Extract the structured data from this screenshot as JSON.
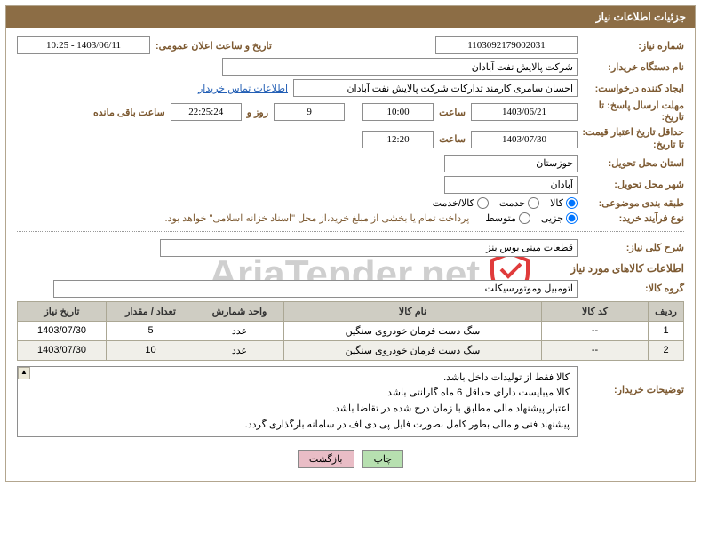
{
  "colors": {
    "header_bg": "#8c6d45",
    "header_text": "#ffffff",
    "label_color": "#7d5a32",
    "border_color": "#b3a68f",
    "table_header_bg": "#cfcdc3",
    "table_border": "#aba794",
    "link_color": "#235fb5",
    "btn_green": "#b7e0b0",
    "btn_pink": "#e9bdc6",
    "watermark_color": "#cfcfcf",
    "watermark_accent": "#e03b3b"
  },
  "title": "جزئیات اطلاعات نیاز",
  "labels": {
    "need_number": "شماره نیاز:",
    "announcement_datetime": "تاریخ و ساعت اعلان عمومی:",
    "buyer_org": "نام دستگاه خریدار:",
    "requester": "ایجاد کننده درخواست:",
    "contact_link": "اطلاعات تماس خریدار",
    "deadline_send": "مهلت ارسال پاسخ:  تا تاریخ:",
    "hour": "ساعت",
    "days_and": "روز و",
    "remaining": "ساعت باقی مانده",
    "min_validity": "حداقل تاریخ اعتبار قیمت:  تا تاریخ:",
    "delivery_province": "استان محل تحویل:",
    "delivery_city": "شهر محل تحویل:",
    "category": "طبقه بندی موضوعی:",
    "purchase_type": "نوع فرآیند خرید:",
    "need_summary": "شرح کلی نیاز:",
    "goods_info": "اطلاعات کالاهای مورد نیاز",
    "goods_group": "گروه کالا:",
    "buyer_notes": "توضیحات خریدار:"
  },
  "fields": {
    "need_number": "1103092179002031",
    "announcement_datetime": "1403/06/11 - 10:25",
    "buyer_org": "شرکت پالایش نفت آبادان",
    "requester": "احسان سامری کارمند تدارکات شرکت پالایش نفت آبادان",
    "deadline_date": "1403/06/21",
    "deadline_time": "10:00",
    "remaining_days": "9",
    "remaining_time": "22:25:24",
    "validity_date": "1403/07/30",
    "validity_time": "12:20",
    "province": "خوزستان",
    "city": "آبادان",
    "need_summary": "قطعات مینی بوس بنز",
    "goods_group": "اتومبیل وموتورسیکلت"
  },
  "category_options": {
    "goods": "کالا",
    "service": "خدمت",
    "goods_service": "کالا/خدمت",
    "selected": "goods"
  },
  "purchase_options": {
    "small": "جزیی",
    "medium": "متوسط",
    "note": "پرداخت تمام یا بخشی از مبلغ خرید،از محل \"اسناد خزانه اسلامی\" خواهد بود.",
    "selected": "small"
  },
  "table": {
    "columns": [
      "ردیف",
      "کد کالا",
      "نام کالا",
      "واحد شمارش",
      "تعداد / مقدار",
      "تاریخ نیاز"
    ],
    "col_widths": [
      "40px",
      "120px",
      "auto",
      "100px",
      "100px",
      "100px"
    ],
    "rows": [
      [
        "1",
        "--",
        "سگ دست فرمان خودروی سنگین",
        "عدد",
        "5",
        "1403/07/30"
      ],
      [
        "2",
        "--",
        "سگ دست فرمان خودروی سنگین",
        "عدد",
        "10",
        "1403/07/30"
      ]
    ]
  },
  "buyer_notes": [
    "کالا فقط از تولیدات داخل باشد.",
    "کالا میبایست دارای حداقل 6 ماه گارانتی باشد",
    "اعتبار پیشنهاد مالی مطابق با زمان درج شده در تقاضا باشد.",
    "پیشنهاد فنی و مالی بطور کامل بصورت فایل پی دی اف در سامانه بارگذاری گردد."
  ],
  "buttons": {
    "print": "چاپ",
    "back": "بازگشت"
  },
  "watermark_text": "AriaTender.net"
}
